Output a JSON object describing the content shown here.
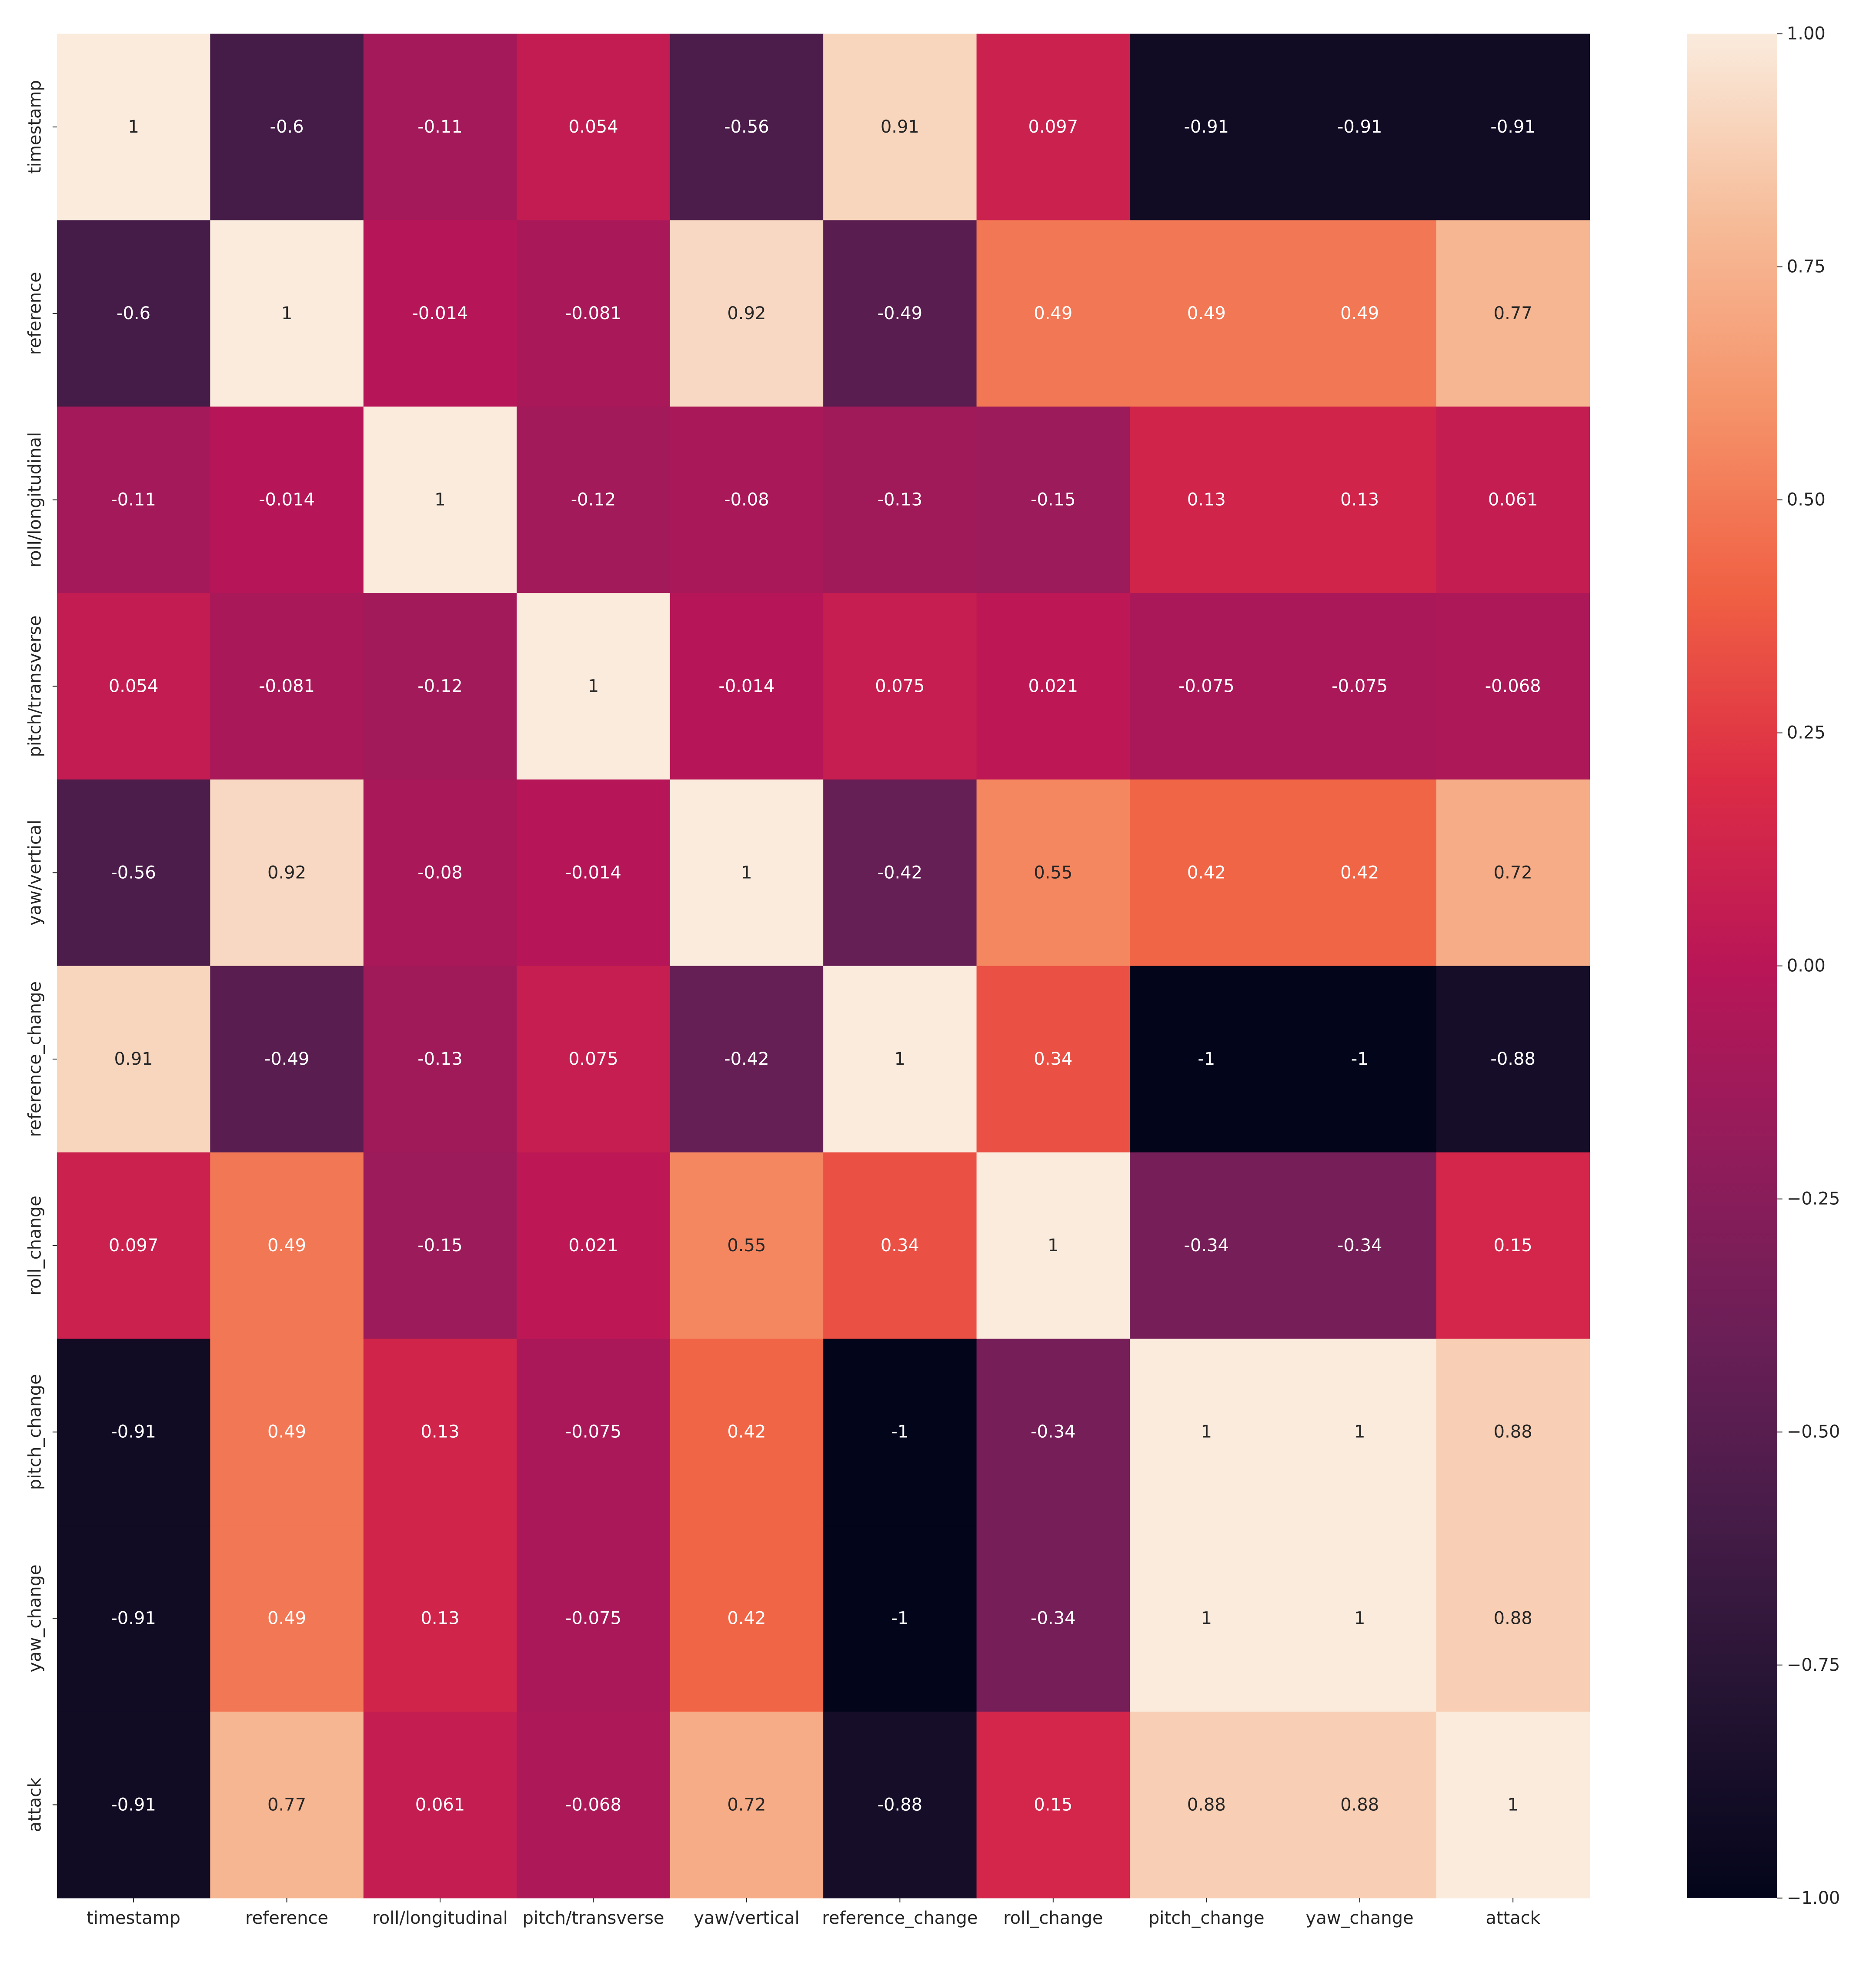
{
  "chart_data": {
    "type": "heatmap",
    "title": "",
    "xlabel": "",
    "ylabel": "",
    "x_labels": [
      "timestamp",
      "reference",
      "roll/longitudinal",
      "pitch/transverse",
      "yaw/vertical",
      "reference_change",
      "roll_change",
      "pitch_change",
      "yaw_change",
      "attack"
    ],
    "y_labels": [
      "timestamp",
      "reference",
      "roll/longitudinal",
      "pitch/transverse",
      "yaw/vertical",
      "reference_change",
      "roll_change",
      "pitch_change",
      "yaw_change",
      "attack"
    ],
    "values": [
      [
        1,
        -0.6,
        -0.11,
        0.054,
        -0.56,
        0.91,
        0.097,
        -0.91,
        -0.91,
        -0.91
      ],
      [
        -0.6,
        1,
        -0.014,
        -0.081,
        0.92,
        -0.49,
        0.49,
        0.49,
        0.49,
        0.77
      ],
      [
        -0.11,
        -0.014,
        1,
        -0.12,
        -0.08,
        -0.13,
        -0.15,
        0.13,
        0.13,
        0.061
      ],
      [
        0.054,
        -0.081,
        -0.12,
        1,
        -0.014,
        0.075,
        0.021,
        -0.075,
        -0.075,
        -0.068
      ],
      [
        -0.56,
        0.92,
        -0.08,
        -0.014,
        1,
        -0.42,
        0.55,
        0.42,
        0.42,
        0.72
      ],
      [
        0.91,
        -0.49,
        -0.13,
        0.075,
        -0.42,
        1,
        0.34,
        -1,
        -1,
        -0.88
      ],
      [
        0.097,
        0.49,
        -0.15,
        0.021,
        0.55,
        0.34,
        1,
        -0.34,
        -0.34,
        0.15
      ],
      [
        -0.91,
        0.49,
        0.13,
        -0.075,
        0.42,
        -1,
        -0.34,
        1,
        1,
        0.88
      ],
      [
        -0.91,
        0.49,
        0.13,
        -0.075,
        0.42,
        -1,
        -0.34,
        1,
        1,
        0.88
      ],
      [
        -0.91,
        0.77,
        0.061,
        -0.068,
        0.72,
        -0.88,
        0.15,
        0.88,
        0.88,
        1
      ]
    ],
    "vmin": -1.0,
    "vmax": 1.0,
    "colorbar": {
      "ticks": [
        1.0,
        0.75,
        0.5,
        0.25,
        0.0,
        -0.25,
        -0.5,
        -0.75,
        -1.0
      ],
      "tick_labels": [
        "1.00",
        "0.75",
        "0.50",
        "0.25",
        "0.00",
        "−0.25",
        "−0.50",
        "−0.75",
        "−1.00"
      ],
      "position": "right"
    },
    "colormap": {
      "name": "rocket",
      "stops": [
        {
          "v": 0.0,
          "color": "#03051a"
        },
        {
          "v": 0.1,
          "color": "#221331"
        },
        {
          "v": 0.2,
          "color": "#451c47"
        },
        {
          "v": 0.3,
          "color": "#6a1f56"
        },
        {
          "v": 0.4,
          "color": "#921c5b"
        },
        {
          "v": 0.5,
          "color": "#b91657"
        },
        {
          "v": 0.6,
          "color": "#dc2c45"
        },
        {
          "v": 0.7,
          "color": "#f06043"
        },
        {
          "v": 0.8,
          "color": "#f5936a"
        },
        {
          "v": 0.9,
          "color": "#f6bc99"
        },
        {
          "v": 1.0,
          "color": "#faebdd"
        }
      ]
    },
    "annotation_colors": {
      "light_text": "#ffffff",
      "dark_text": "#262626"
    },
    "grid": false
  }
}
